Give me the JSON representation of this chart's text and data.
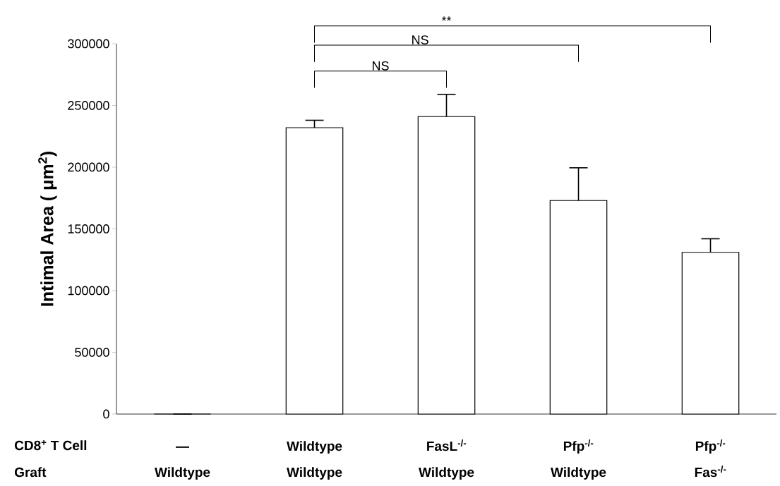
{
  "chart_data": {
    "type": "bar",
    "ylabel": "Intimal Area ( μm$^{2}$)",
    "categories": [
      "—",
      "Wildtype",
      "FasL$^{-/-}$",
      "Pfp$^{-/-}$",
      "Pfp$^{-/-}$"
    ],
    "values": [
      0,
      232000,
      241000,
      173000,
      131000
    ],
    "errors": [
      null,
      6000,
      18000,
      26500,
      11000
    ],
    "color": "#ffffff",
    "ylim": [
      0,
      300000
    ],
    "yticks": [
      0,
      50000,
      100000,
      150000,
      200000,
      250000,
      300000
    ],
    "grid": false,
    "annotations": [
      "NS",
      "NS",
      "**",
      "CD8$^{+}$ T Cell",
      "Graft",
      "Wildtype",
      "Wildtype",
      "Wildtype",
      "Wildtype",
      "Fas$^{-/-}$"
    ]
  }
}
